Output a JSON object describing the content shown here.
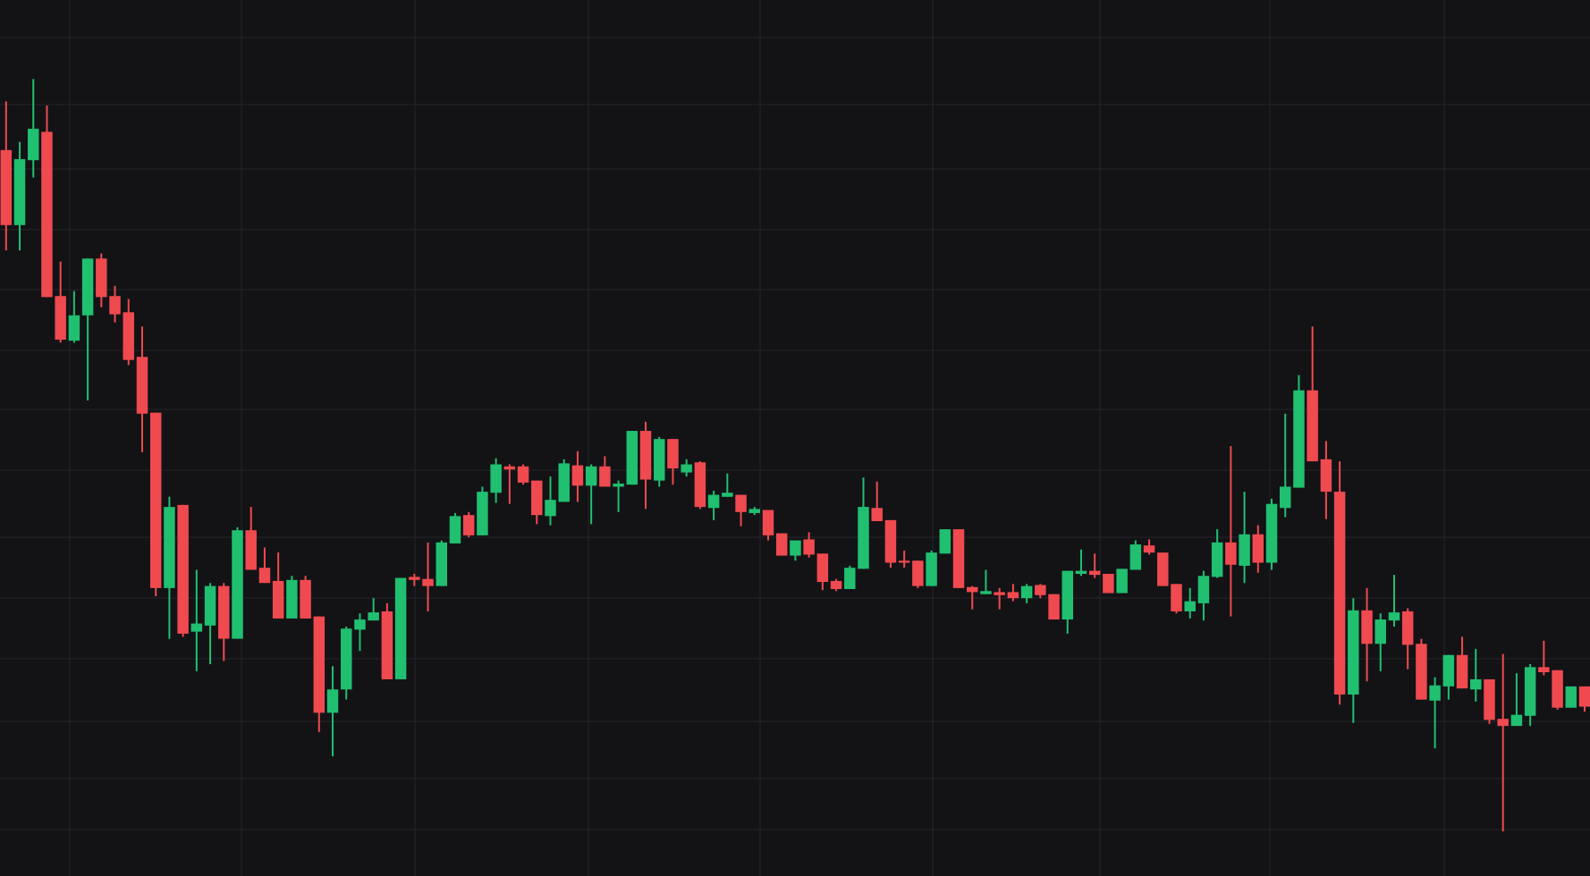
{
  "chart_data": {
    "type": "candlestick",
    "up_color": "#21bf70",
    "down_color": "#ef4a4f",
    "background": "#131316",
    "grid": true,
    "ylim": [
      0,
      864
    ],
    "open": [
      716,
      642,
      706,
      734,
      572,
      528,
      553,
      609,
      572,
      556,
      512,
      457,
      284,
      366,
      241,
      247,
      286,
      234,
      341,
      304,
      291,
      254,
      292,
      256,
      161,
      184,
      243,
      252,
      261,
      194,
      295,
      293,
      286,
      328,
      356,
      336,
      378,
      404,
      404,
      390,
      355,
      369,
      405,
      385,
      404,
      384,
      386,
      439,
      390,
      431,
      398,
      408,
      363,
      374,
      376,
      358,
      361,
      338,
      316,
      332,
      318,
      291,
      283,
      303,
      363,
      351,
      311,
      311,
      286,
      318,
      342,
      285,
      278,
      280,
      280,
      274,
      287,
      278,
      253,
      298,
      301,
      298,
      279,
      302,
      326,
      319,
      288,
      261,
      269,
      295,
      329,
      306,
      337,
      309,
      363,
      383,
      479,
      411,
      379,
      179,
      262,
      229,
      252,
      261,
      229,
      173,
      187,
      218,
      184,
      194,
      155,
      148,
      158,
      206,
      203,
      166,
      187
    ],
    "high": [
      764,
      724,
      786,
      760,
      606,
      577,
      609,
      614,
      582,
      569,
      542,
      457,
      374,
      366,
      302,
      289,
      289,
      344,
      364,
      324,
      319,
      296,
      296,
      256,
      207,
      246,
      259,
      274,
      269,
      294,
      298,
      329,
      331,
      358,
      359,
      384,
      412,
      406,
      406,
      390,
      394,
      411,
      419,
      406,
      414,
      390,
      439,
      448,
      433,
      431,
      411,
      409,
      380,
      397,
      376,
      364,
      361,
      338,
      331,
      339,
      318,
      293,
      306,
      393,
      389,
      351,
      321,
      311,
      321,
      342,
      342,
      286,
      302,
      284,
      288,
      288,
      288,
      278,
      301,
      322,
      318,
      298,
      303,
      331,
      332,
      319,
      288,
      284,
      301,
      342,
      424,
      379,
      346,
      372,
      456,
      494,
      542,
      429,
      409,
      274,
      284,
      259,
      297,
      264,
      234,
      196,
      218,
      236,
      224,
      194,
      219,
      200,
      209,
      232,
      203,
      187,
      187
    ],
    "low": [
      617,
      617,
      689,
      571,
      526,
      526,
      469,
      561,
      546,
      504,
      418,
      276,
      234,
      236,
      202,
      209,
      212,
      234,
      302,
      289,
      254,
      254,
      254,
      142,
      118,
      174,
      222,
      252,
      194,
      194,
      286,
      261,
      286,
      328,
      334,
      336,
      368,
      367,
      386,
      347,
      346,
      369,
      369,
      347,
      384,
      359,
      386,
      362,
      384,
      386,
      394,
      362,
      351,
      374,
      345,
      356,
      331,
      316,
      311,
      314,
      282,
      281,
      283,
      303,
      350,
      304,
      304,
      284,
      286,
      318,
      284,
      263,
      278,
      263,
      271,
      269,
      274,
      253,
      239,
      296,
      294,
      279,
      279,
      302,
      317,
      286,
      259,
      254,
      252,
      294,
      256,
      289,
      299,
      302,
      354,
      383,
      409,
      352,
      169,
      151,
      192,
      202,
      246,
      204,
      174,
      126,
      174,
      185,
      172,
      150,
      44,
      148,
      148,
      198,
      164,
      166,
      162
    ],
    "close": [
      642,
      707,
      737,
      571,
      529,
      553,
      609,
      571,
      554,
      509,
      456,
      284,
      364,
      239,
      249,
      286,
      234,
      341,
      302,
      289,
      254,
      292,
      254,
      161,
      184,
      244,
      253,
      260,
      194,
      294,
      292,
      286,
      329,
      355,
      336,
      379,
      406,
      401,
      388,
      356,
      371,
      407,
      385,
      404,
      384,
      387,
      439,
      391,
      431,
      402,
      406,
      364,
      376,
      378,
      359,
      362,
      336,
      316,
      331,
      317,
      290,
      283,
      304,
      364,
      350,
      309,
      309,
      286,
      319,
      342,
      284,
      280,
      281,
      277,
      274,
      286,
      277,
      253,
      301,
      301,
      297,
      279,
      303,
      327,
      319,
      286,
      261,
      271,
      296,
      329,
      307,
      337,
      309,
      367,
      384,
      479,
      409,
      379,
      179,
      262,
      229,
      253,
      260,
      228,
      174,
      188,
      218,
      185,
      194,
      154,
      148,
      159,
      206,
      201,
      166,
      187,
      167
    ]
  }
}
